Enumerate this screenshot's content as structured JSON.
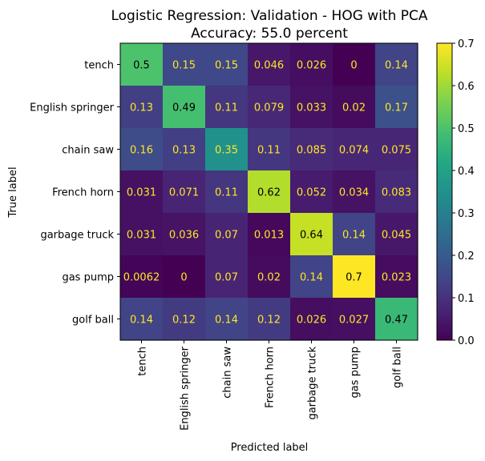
{
  "chart_data": {
    "type": "heatmap",
    "title_line1": "Logistic Regression: Validation - HOG with PCA",
    "title_line2": "Accuracy: 55.0 percent",
    "xlabel": "Predicted label",
    "ylabel": "True label",
    "row_labels": [
      "tench",
      "English springer",
      "chain saw",
      "French horn",
      "garbage truck",
      "gas pump",
      "golf ball"
    ],
    "col_labels": [
      "tench",
      "English springer",
      "chain saw",
      "French horn",
      "garbage truck",
      "gas pump",
      "golf ball"
    ],
    "values": [
      [
        0.5,
        0.15,
        0.15,
        0.046,
        0.026,
        0,
        0.14
      ],
      [
        0.13,
        0.49,
        0.11,
        0.079,
        0.033,
        0.02,
        0.17
      ],
      [
        0.16,
        0.13,
        0.35,
        0.11,
        0.085,
        0.074,
        0.075
      ],
      [
        0.031,
        0.071,
        0.11,
        0.62,
        0.052,
        0.034,
        0.083
      ],
      [
        0.031,
        0.036,
        0.07,
        0.013,
        0.64,
        0.14,
        0.045
      ],
      [
        0.0062,
        0,
        0.07,
        0.02,
        0.14,
        0.7,
        0.023
      ],
      [
        0.14,
        0.12,
        0.14,
        0.12,
        0.026,
        0.027,
        0.47
      ]
    ],
    "value_labels": [
      [
        "0.5",
        "0.15",
        "0.15",
        "0.046",
        "0.026",
        "0",
        "0.14"
      ],
      [
        "0.13",
        "0.49",
        "0.11",
        "0.079",
        "0.033",
        "0.02",
        "0.17"
      ],
      [
        "0.16",
        "0.13",
        "0.35",
        "0.11",
        "0.085",
        "0.074",
        "0.075"
      ],
      [
        "0.031",
        "0.071",
        "0.11",
        "0.62",
        "0.052",
        "0.034",
        "0.083"
      ],
      [
        "0.031",
        "0.036",
        "0.07",
        "0.013",
        "0.64",
        "0.14",
        "0.045"
      ],
      [
        "0.0062",
        "0",
        "0.07",
        "0.02",
        "0.14",
        "0.7",
        "0.023"
      ],
      [
        "0.14",
        "0.12",
        "0.14",
        "0.12",
        "0.026",
        "0.027",
        "0.47"
      ]
    ],
    "colorbar": {
      "colormap": "viridis",
      "vmin": 0,
      "vmax": 0.7,
      "ticks": [
        0.0,
        0.1,
        0.2,
        0.3,
        0.4,
        0.5,
        0.6,
        0.7
      ],
      "tick_labels": [
        "0.0",
        "0.1",
        "0.2",
        "0.3",
        "0.4",
        "0.5",
        "0.6",
        "0.7"
      ]
    },
    "text_color_dark_cells": "#fde725",
    "text_color_bright_cells": "#000000",
    "grid": false
  }
}
